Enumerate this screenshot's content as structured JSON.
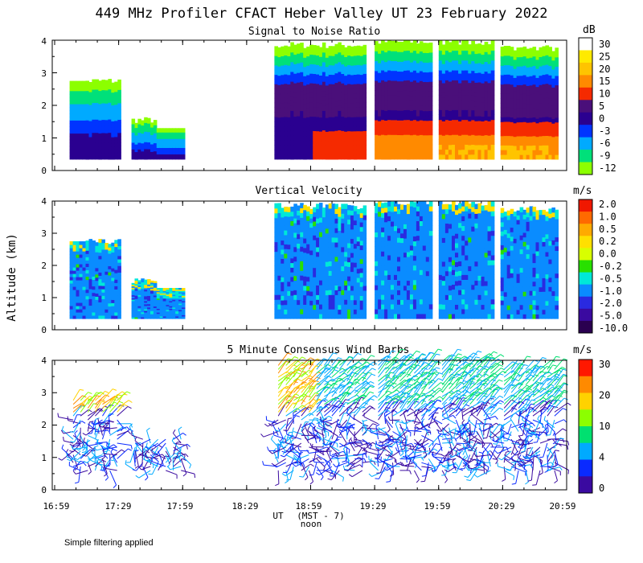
{
  "figure": {
    "title": "449 MHz Profiler CFACT Heber Valley UT 23 February 2022",
    "ylabel": "Altitude (km)",
    "xlabel": "UT",
    "xlabel_note": "(MST - 7)",
    "noon_label": "noon",
    "footnote": "Simple filtering applied",
    "x_ticks": [
      "16:59",
      "17:29",
      "17:59",
      "18:29",
      "18:59",
      "19:29",
      "19:59",
      "20:29",
      "20:59"
    ],
    "y_ticks": [
      "0",
      "1",
      "2",
      "3",
      "4"
    ]
  },
  "chart_data": [
    {
      "type": "heatmap",
      "title": "Signal to Noise Ratio",
      "units": "dB",
      "xlim": [
        "16:59",
        "20:59"
      ],
      "ylim": [
        0,
        4
      ],
      "ylabel": "Altitude (km)",
      "colorbar_labels": [
        "30",
        "25",
        "20",
        "15",
        "10",
        "5",
        "0",
        "-3",
        "-6",
        "-9",
        "-12"
      ],
      "colorbar_colors": [
        "#ffffff",
        "#ffea00",
        "#ffc400",
        "#ff8a00",
        "#f52a00",
        "#4a0f7a",
        "#2a0090",
        "#0034ff",
        "#00aaff",
        "#00e07a",
        "#8cff00"
      ],
      "data_segments_ut": [
        [
          "17:06",
          "17:30"
        ],
        [
          "17:35",
          "18:00"
        ],
        [
          "18:42",
          "19:00"
        ],
        [
          "19:00",
          "19:25"
        ],
        [
          "19:29",
          "19:56"
        ],
        [
          "19:59",
          "20:25"
        ],
        [
          "20:28",
          "20:55"
        ]
      ]
    },
    {
      "type": "heatmap",
      "title": "Vertical Velocity",
      "units": "m/s",
      "xlim": [
        "16:59",
        "20:59"
      ],
      "ylim": [
        0,
        4
      ],
      "colorbar_labels": [
        "2.0",
        "1.0",
        "0.5",
        "0.2",
        "0.0",
        "-0.2",
        "-0.5",
        "-1.0",
        "-2.0",
        "-5.0",
        "-10.0"
      ],
      "colorbar_colors": [
        "#f01800",
        "#ff6a00",
        "#ffaa00",
        "#ffe000",
        "#d8ff00",
        "#28e000",
        "#00e8d8",
        "#0a8cff",
        "#2a2ae0",
        "#3a0aa0",
        "#2a0050"
      ],
      "data_segments_ut": [
        [
          "17:06",
          "17:30"
        ],
        [
          "17:35",
          "18:00"
        ],
        [
          "18:42",
          "19:00"
        ],
        [
          "19:00",
          "19:25"
        ],
        [
          "19:29",
          "19:56"
        ],
        [
          "19:59",
          "20:25"
        ],
        [
          "20:28",
          "20:55"
        ]
      ]
    },
    {
      "type": "scatter",
      "title": "5 Minute Consensus Wind Barbs",
      "units": "m/s",
      "xlim": [
        "16:59",
        "20:59"
      ],
      "ylim": [
        0,
        4
      ],
      "colorbar_labels": [
        "30",
        "20",
        "10",
        "4",
        "0"
      ],
      "colorbar_colors": [
        "#ff1800",
        "#ff8a00",
        "#ffd200",
        "#8cff00",
        "#00e070",
        "#00aaff",
        "#0a2aff",
        "#3a0aa0"
      ]
    }
  ]
}
